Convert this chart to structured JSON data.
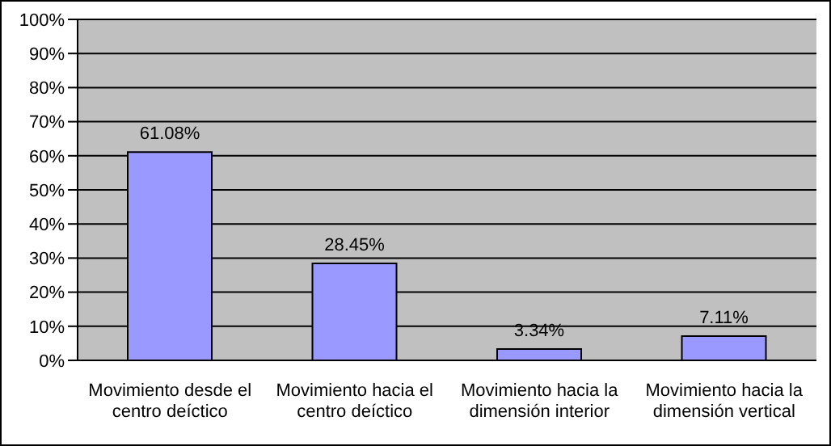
{
  "chart_data": {
    "type": "bar",
    "categories": [
      "Movimiento desde el centro deíctico",
      "Movimiento hacia el centro deíctico",
      "Movimiento hacia la dimensión interior",
      "Movimiento hacia la dimensión vertical"
    ],
    "values": [
      61.08,
      28.45,
      3.34,
      7.11
    ],
    "color": "#9999ff",
    "value_labels": [
      "61.08%",
      "28.45%",
      "3.34%",
      "7.11%"
    ],
    "ylim": [
      0,
      100
    ],
    "yticks": [
      {
        "value": 0,
        "label": "0%"
      },
      {
        "value": 10,
        "label": "10%"
      },
      {
        "value": 20,
        "label": "20%"
      },
      {
        "value": 30,
        "label": "30%"
      },
      {
        "value": 40,
        "label": "40%"
      },
      {
        "value": 50,
        "label": "50%"
      },
      {
        "value": 60,
        "label": "60%"
      },
      {
        "value": 70,
        "label": "70%"
      },
      {
        "value": 80,
        "label": "80%"
      },
      {
        "value": 90,
        "label": "90%"
      },
      {
        "value": 100,
        "label": "100%"
      }
    ],
    "grid": "y",
    "legend": false
  }
}
